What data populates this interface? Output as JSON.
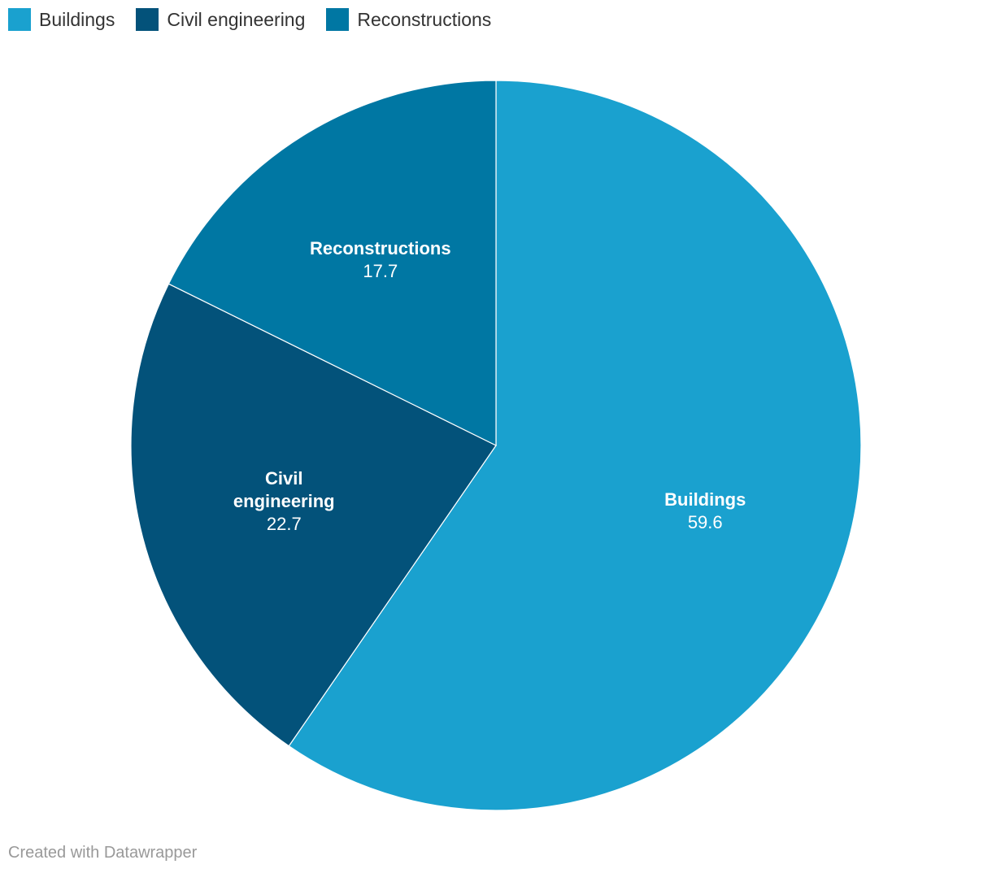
{
  "chart_data": {
    "type": "pie",
    "categories": [
      "Buildings",
      "Civil engineering",
      "Reconstructions"
    ],
    "values": [
      59.6,
      22.7,
      17.7
    ],
    "colors": [
      "#1aa1cf",
      "#03527a",
      "#0077a3"
    ],
    "slice_labels": [
      {
        "name_lines": [
          "Buildings"
        ],
        "value": "59.6"
      },
      {
        "name_lines": [
          "Civil",
          "engineering"
        ],
        "value": "22.7"
      },
      {
        "name_lines": [
          "Reconstructions"
        ],
        "value": "17.7"
      }
    ],
    "legend": [
      {
        "label": "Buildings",
        "color": "#1aa1cf"
      },
      {
        "label": "Civil engineering",
        "color": "#03527a"
      },
      {
        "label": "Reconstructions",
        "color": "#0077a3"
      }
    ],
    "legend_placement": "top-left",
    "start_angle": "12 o'clock",
    "direction": "clockwise"
  },
  "footer": {
    "credit": "Created with Datawrapper"
  }
}
